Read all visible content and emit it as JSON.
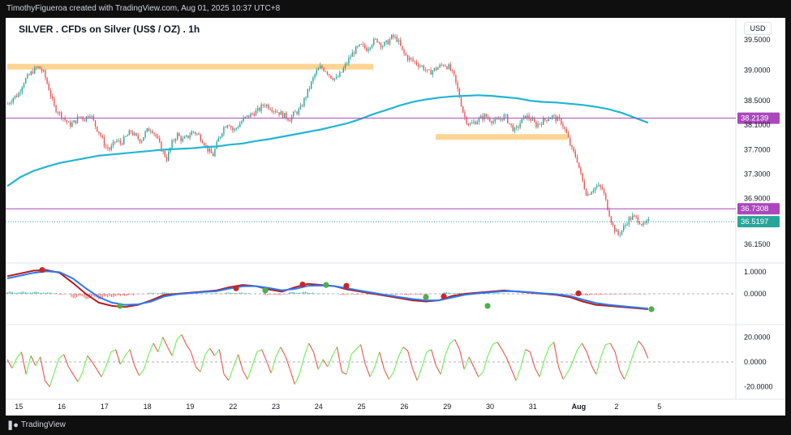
{
  "header": {
    "attribution": "TimothyFigueroa created with TradingView.com, Aug 01, 2025 10:37 UTC+8"
  },
  "footer": {
    "brand": "TradingView"
  },
  "colors": {
    "up": "#26a69a",
    "down": "#ef5350",
    "ma": "#22b5d1",
    "zone": "#ffcc80",
    "level": "#ab47bc",
    "last_price": "#26a69a",
    "osc_fast": "#b71c1c",
    "osc_slow": "#2979ff",
    "cross_up": "#4caf50",
    "cross_down": "#c62828",
    "rsi_up": "#69f04f",
    "rsi_down": "#ef5350"
  },
  "chart_data": [
    {
      "id": "price",
      "type": "candlestick",
      "title": "SILVER . CFDs on Silver (US$ / OZ) . 1h",
      "currency": "USD",
      "ylim": [
        35.95,
        39.75
      ],
      "y_ticks": [
        "39.5000",
        "39.0000",
        "38.5000",
        "38.1000",
        "37.7000",
        "37.3000",
        "36.9000",
        "36.1500"
      ],
      "x_ticks": [
        "15",
        "16",
        "17",
        "18",
        "19",
        "22",
        "23",
        "24",
        "25",
        "26",
        "29",
        "30",
        "31",
        "Aug",
        "2",
        "5"
      ],
      "x_tick_bars": [
        6,
        30,
        54,
        78,
        102,
        126,
        150,
        174,
        198,
        222,
        246,
        270,
        294,
        318,
        342,
        366
      ],
      "closes": [
        38.45,
        38.55,
        38.6,
        38.8,
        38.9,
        39.0,
        39.05,
        38.95,
        38.7,
        38.4,
        38.3,
        38.2,
        38.1,
        38.15,
        38.25,
        38.2,
        38.3,
        38.1,
        37.95,
        37.75,
        37.7,
        37.85,
        37.8,
        37.9,
        38.0,
        37.9,
        37.85,
        38.0,
        38.05,
        37.9,
        37.7,
        37.55,
        37.8,
        37.95,
        37.85,
        37.9,
        38.0,
        37.95,
        37.85,
        37.7,
        37.6,
        37.85,
        38.05,
        38.15,
        38.0,
        38.1,
        38.2,
        38.25,
        38.3,
        38.35,
        38.45,
        38.4,
        38.35,
        38.3,
        38.25,
        38.2,
        38.3,
        38.35,
        38.55,
        38.75,
        38.95,
        39.05,
        39.0,
        38.9,
        38.85,
        38.95,
        39.1,
        39.25,
        39.35,
        39.4,
        39.35,
        39.45,
        39.5,
        39.4,
        39.45,
        39.55,
        39.5,
        39.3,
        39.2,
        39.15,
        39.1,
        39.05,
        38.95,
        39.0,
        39.05,
        39.1,
        39.05,
        38.9,
        38.6,
        38.25,
        38.1,
        38.15,
        38.2,
        38.25,
        38.2,
        38.15,
        38.2,
        38.25,
        38.1,
        38.0,
        38.15,
        38.25,
        38.2,
        38.1,
        38.15,
        38.2,
        38.25,
        38.2,
        38.15,
        37.95,
        37.7,
        37.55,
        37.2,
        36.95,
        37.05,
        37.1,
        37.05,
        36.75,
        36.45,
        36.3,
        36.4,
        36.55,
        36.6,
        36.55,
        36.45,
        36.52
      ],
      "series": [
        {
          "name": "",
          "type": "line",
          "values": [
            37.1,
            37.25,
            37.35,
            37.42,
            37.48,
            37.52,
            37.56,
            37.6,
            37.62,
            37.64,
            37.66,
            37.68,
            37.7,
            37.71,
            37.72,
            37.74,
            37.75,
            37.78,
            37.8,
            37.84,
            37.87,
            37.91,
            37.95,
            37.99,
            38.03,
            38.08,
            38.13,
            38.2,
            38.28,
            38.35,
            38.42,
            38.48,
            38.52,
            38.55,
            38.57,
            38.58,
            38.59,
            38.58,
            38.56,
            38.54,
            38.5,
            38.48,
            38.47,
            38.45,
            38.43,
            38.4,
            38.36,
            38.3,
            38.22,
            38.14
          ]
        }
      ],
      "levels": [
        {
          "label": "38.2139",
          "value": 38.2139,
          "kind": "level"
        },
        {
          "label": "36.7308",
          "value": 36.7308,
          "kind": "level"
        },
        {
          "label": "36.5197",
          "value": 36.5197,
          "kind": "last"
        }
      ],
      "zones": [
        {
          "from_bar": 0,
          "to_bar": 205,
          "value": 39.05
        },
        {
          "from_bar": 240,
          "to_bar": 314,
          "value": 37.9
        }
      ]
    },
    {
      "id": "oscillator",
      "type": "line",
      "ylim": [
        -1.4,
        1.4
      ],
      "y_ticks": [
        "1.0000",
        "0.0000"
      ],
      "series": [
        {
          "name": "",
          "values": [
            0.8,
            0.92,
            1.05,
            1.08,
            0.95,
            0.5,
            0.0,
            -0.4,
            -0.55,
            -0.6,
            -0.5,
            -0.3,
            -0.05,
            0.0,
            0.05,
            0.1,
            0.15,
            0.3,
            0.4,
            0.35,
            0.2,
            0.1,
            0.3,
            0.45,
            0.4,
            0.35,
            0.2,
            0.1,
            0.0,
            -0.1,
            -0.2,
            -0.3,
            -0.35,
            -0.3,
            -0.1,
            0.0,
            0.05,
            0.1,
            0.15,
            0.1,
            0.05,
            0.0,
            -0.05,
            -0.15,
            -0.35,
            -0.5,
            -0.55,
            -0.6,
            -0.65,
            -0.7
          ]
        },
        {
          "name": "",
          "values": [
            0.7,
            0.82,
            0.95,
            1.02,
            0.98,
            0.7,
            0.25,
            -0.15,
            -0.4,
            -0.5,
            -0.48,
            -0.35,
            -0.12,
            -0.02,
            0.03,
            0.08,
            0.12,
            0.24,
            0.34,
            0.35,
            0.26,
            0.16,
            0.22,
            0.36,
            0.38,
            0.35,
            0.25,
            0.14,
            0.04,
            -0.06,
            -0.15,
            -0.24,
            -0.3,
            -0.3,
            -0.17,
            -0.04,
            0.02,
            0.07,
            0.12,
            0.11,
            0.07,
            0.02,
            -0.02,
            -0.1,
            -0.26,
            -0.42,
            -0.5,
            -0.56,
            -0.62,
            -0.67
          ]
        }
      ],
      "histogram": [
        0.1,
        0.1,
        0.1,
        0.06,
        -0.03,
        -0.2,
        -0.25,
        -0.25,
        -0.15,
        -0.1,
        -0.02,
        0.05,
        0.07,
        0.02,
        0.02,
        0.02,
        0.03,
        0.06,
        0.06,
        0.0,
        -0.06,
        -0.06,
        0.08,
        0.09,
        0.02,
        0.0,
        -0.05,
        -0.04,
        -0.04,
        -0.04,
        -0.05,
        -0.06,
        -0.05,
        0.0,
        0.07,
        0.04,
        0.03,
        0.03,
        0.03,
        -0.01,
        -0.02,
        -0.02,
        -0.03,
        -0.05,
        -0.09,
        -0.08,
        -0.05,
        -0.04,
        -0.03,
        -0.03
      ],
      "markers": [
        {
          "bar": 45,
          "value": 1.08,
          "kind": "down"
        },
        {
          "bar": 141,
          "value": -0.55,
          "kind": "up"
        },
        {
          "bar": 284,
          "value": 0.25,
          "kind": "down"
        },
        {
          "bar": 320,
          "value": 0.15,
          "kind": "up"
        },
        {
          "bar": 366,
          "value": 0.42,
          "kind": "down"
        },
        {
          "bar": 395,
          "value": 0.4,
          "kind": "up"
        },
        {
          "bar": 420,
          "value": 0.36,
          "kind": "down"
        },
        {
          "bar": 518,
          "value": -0.15,
          "kind": "up"
        },
        {
          "bar": 540,
          "value": -0.12,
          "kind": "down"
        },
        {
          "bar": 594,
          "value": -0.55,
          "kind": "up"
        },
        {
          "bar": 706,
          "value": 0.02,
          "kind": "down"
        },
        {
          "bar": 796,
          "value": -0.7,
          "kind": "up"
        }
      ]
    },
    {
      "id": "momentum",
      "type": "line",
      "ylim": [
        -30,
        30
      ],
      "y_ticks": [
        "20.0000",
        "0.0000",
        "-20.0000"
      ],
      "values": [
        2,
        -5,
        3,
        8,
        -10,
        5,
        -3,
        4,
        -15,
        -20,
        -8,
        3,
        6,
        -4,
        -10,
        -16,
        -8,
        5,
        0,
        -6,
        -12,
        -3,
        8,
        10,
        -2,
        5,
        10,
        -3,
        -11,
        -6,
        6,
        15,
        8,
        20,
        12,
        5,
        18,
        22,
        14,
        8,
        -4,
        -8,
        6,
        11,
        5,
        10,
        -10,
        -15,
        -4,
        6,
        -7,
        -14,
        -3,
        8,
        10,
        1,
        -9,
        4,
        12,
        5,
        -6,
        -18,
        -10,
        4,
        15,
        8,
        -6,
        2,
        -4,
        5,
        12,
        -8,
        -10,
        6,
        10,
        14,
        -2,
        -12,
        -4,
        8,
        -6,
        -14,
        -8,
        4,
        12,
        9,
        -5,
        -15,
        -4,
        8,
        10,
        -3,
        -10,
        6,
        15,
        18,
        10,
        -6,
        4,
        -4,
        -12,
        -8,
        5,
        14,
        16,
        10,
        3,
        -6,
        -15,
        -4,
        10,
        8,
        -5,
        -12,
        2,
        12,
        16,
        -4,
        -14,
        -8,
        0,
        10,
        15,
        8,
        -3,
        -10,
        4,
        14,
        15,
        8,
        -7,
        -14,
        -4,
        8,
        17,
        12,
        3
      ],
      "zero_line": 0
    }
  ]
}
